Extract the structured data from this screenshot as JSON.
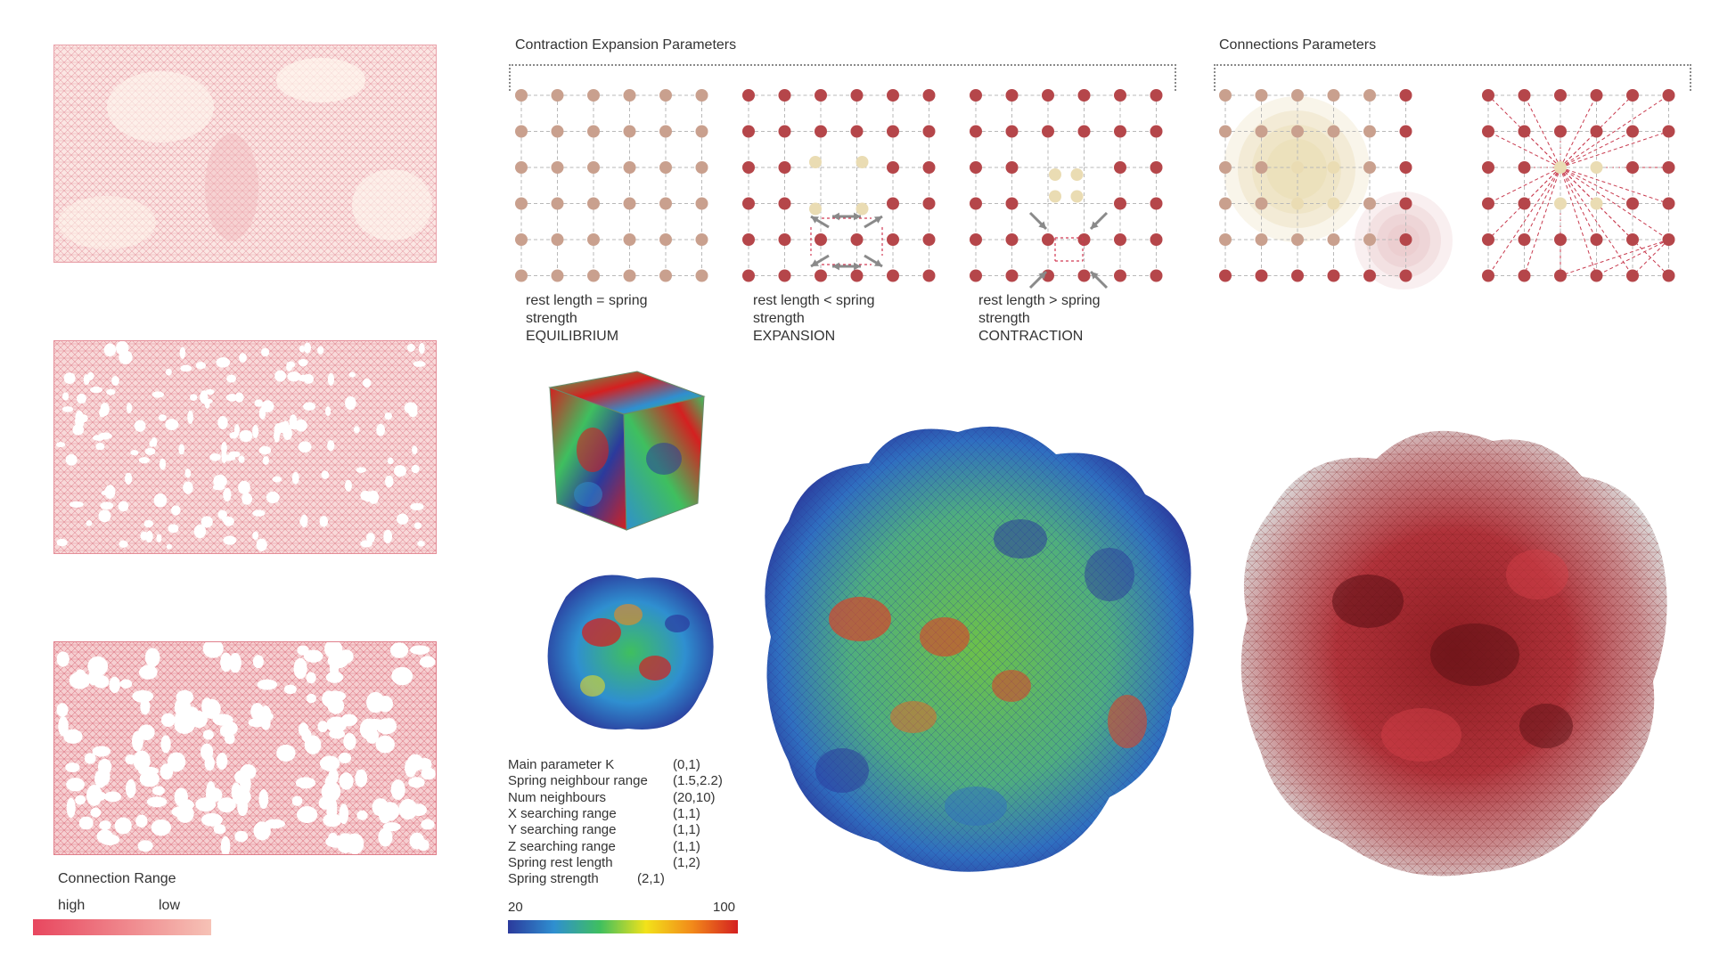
{
  "connections_legend": {
    "title": "Connection Range",
    "high": "high",
    "low": "low",
    "gradient": [
      "#e8475f",
      "#f6c2b6"
    ]
  },
  "contraction": {
    "title": "Contraction Expansion Parameters",
    "panels": [
      {
        "line1": "rest length = spring",
        "line2": "strength",
        "line3": "EQUILIBRIUM"
      },
      {
        "line1": "rest length < spring",
        "line2": "strength",
        "line3": "EXPANSION"
      },
      {
        "line1": "rest length > spring",
        "line2": "strength",
        "line3": "CONTRACTION"
      }
    ]
  },
  "connections": {
    "title": "Connections Parameters"
  },
  "parameters": [
    {
      "name": "Main parameter K",
      "value": "(0,1)"
    },
    {
      "name": "Spring neighbour range",
      "value": "(1.5,2.2)"
    },
    {
      "name": "Num neighbours",
      "value": "(20,10)"
    },
    {
      "name": "X searching range",
      "value": "(1,1)"
    },
    {
      "name": "Y searching range",
      "value": "(1,1)"
    },
    {
      "name": "Z searching range",
      "value": "(1,1)"
    },
    {
      "name": "Spring rest length",
      "value": "(1,2)"
    },
    {
      "name": "Spring strength",
      "value": "(2,1)"
    }
  ],
  "color_scale": {
    "min": "20",
    "max": "100",
    "colors": [
      "#2b3a9c",
      "#2f8fd0",
      "#3fbf5f",
      "#f2e21a",
      "#f28a1a",
      "#d42020"
    ]
  },
  "colors": {
    "node_light": "#c9a08e",
    "node_dark": "#b5464a",
    "node_cream": "#eadcb3",
    "mesh_pink": "#e79aa3"
  }
}
